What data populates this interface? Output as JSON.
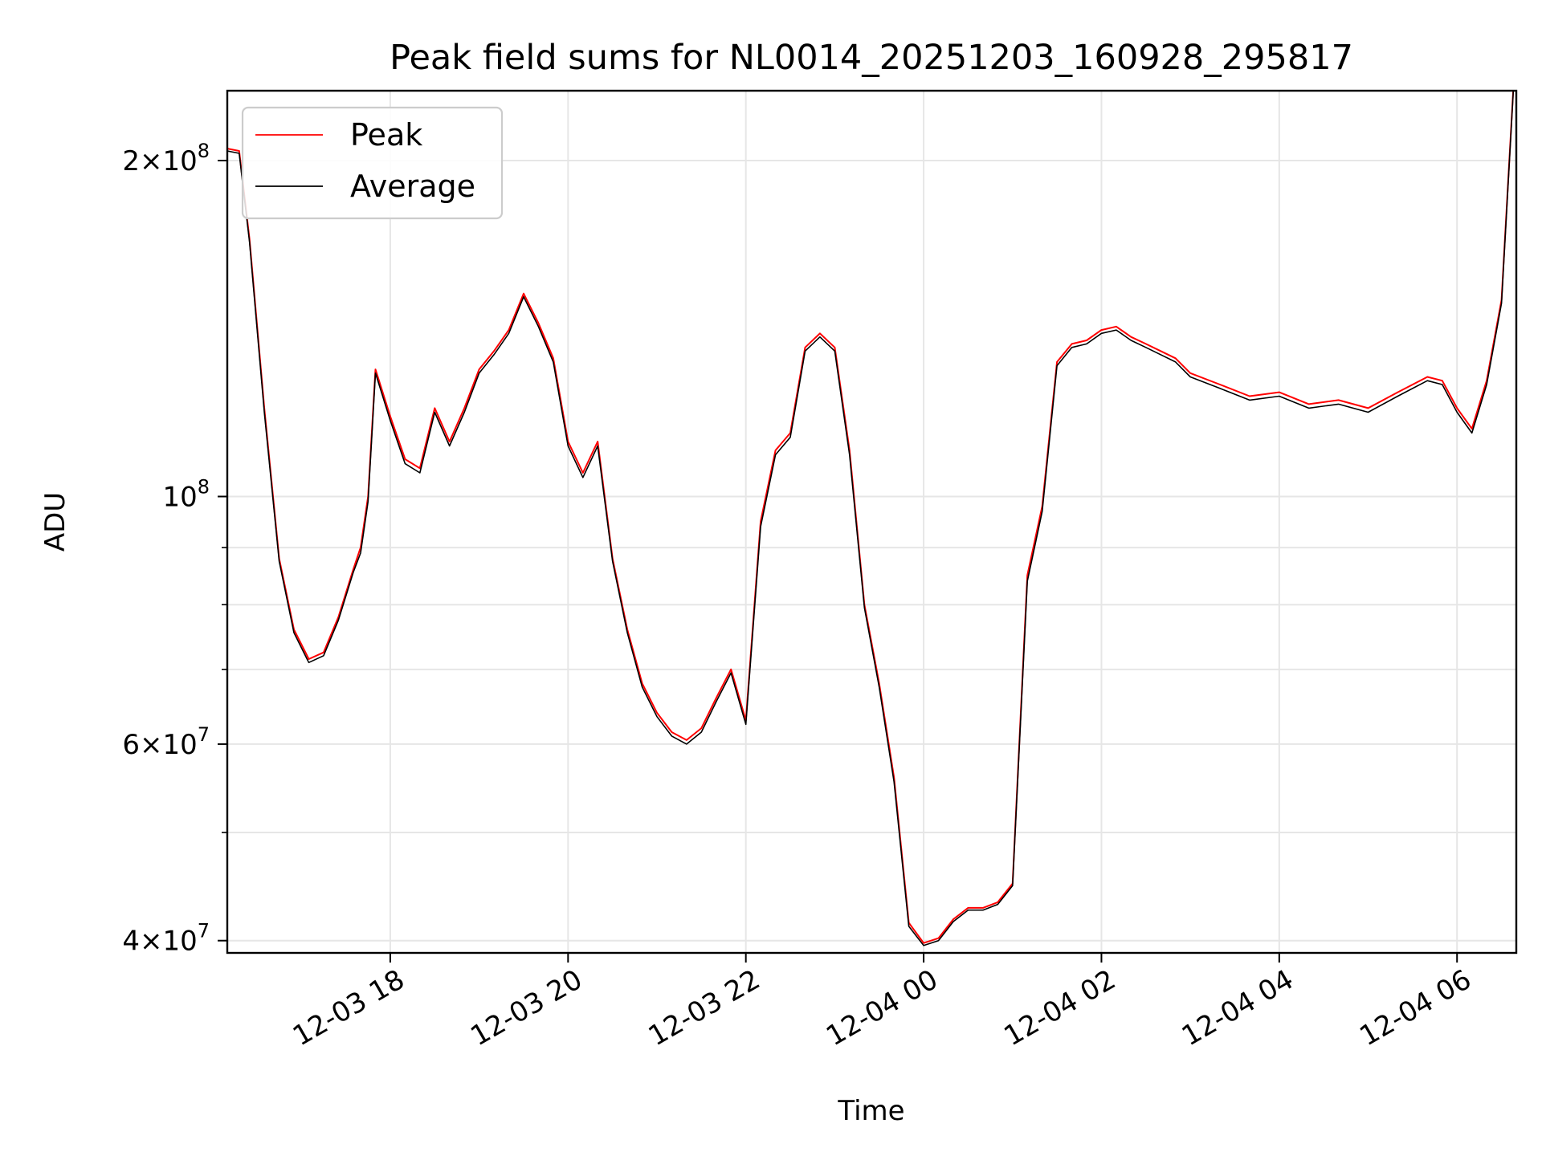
{
  "chart_data": {
    "type": "line",
    "title": "Peak field sums for NL0014_20251203_160928_295817",
    "xlabel": "Time",
    "ylabel": "ADU",
    "y_scale": "log",
    "ylim": [
      39000000,
      231000000
    ],
    "xlim": [
      "2025-12-03 16:10",
      "2025-12-04 06:40"
    ],
    "grid": true,
    "legend_position": "top-left",
    "x_ticks": [
      {
        "t": "2025-12-03 18:00",
        "label": "12-03 18"
      },
      {
        "t": "2025-12-03 20:00",
        "label": "12-03 20"
      },
      {
        "t": "2025-12-03 22:00",
        "label": "12-03 22"
      },
      {
        "t": "2025-12-04 00:00",
        "label": "12-04 00"
      },
      {
        "t": "2025-12-04 02:00",
        "label": "12-04 02"
      },
      {
        "t": "2025-12-04 04:00",
        "label": "12-04 04"
      },
      {
        "t": "2025-12-04 06:00",
        "label": "12-04 06"
      }
    ],
    "y_ticks_major": [
      {
        "v": 40000000,
        "mant": "4",
        "exp": "7"
      },
      {
        "v": 60000000,
        "mant": "6",
        "exp": "7"
      },
      {
        "v": 100000000,
        "mant": "",
        "exp": "8"
      },
      {
        "v": 200000000,
        "mant": "2",
        "exp": "8"
      }
    ],
    "y_ticks_minor": [
      50000000,
      70000000,
      80000000,
      90000000
    ],
    "series": [
      {
        "name": "Peak",
        "color": "#ff0000",
        "x": [
          "2025-12-03 16:10",
          "2025-12-03 16:18",
          "2025-12-03 16:25",
          "2025-12-03 16:35",
          "2025-12-03 16:45",
          "2025-12-03 16:55",
          "2025-12-03 17:05",
          "2025-12-03 17:15",
          "2025-12-03 17:25",
          "2025-12-03 17:35",
          "2025-12-03 17:40",
          "2025-12-03 17:45",
          "2025-12-03 17:50",
          "2025-12-03 18:00",
          "2025-12-03 18:10",
          "2025-12-03 18:20",
          "2025-12-03 18:30",
          "2025-12-03 18:40",
          "2025-12-03 18:50",
          "2025-12-03 19:00",
          "2025-12-03 19:10",
          "2025-12-03 19:20",
          "2025-12-03 19:30",
          "2025-12-03 19:40",
          "2025-12-03 19:50",
          "2025-12-03 20:00",
          "2025-12-03 20:10",
          "2025-12-03 20:20",
          "2025-12-03 20:30",
          "2025-12-03 20:40",
          "2025-12-03 20:50",
          "2025-12-03 21:00",
          "2025-12-03 21:10",
          "2025-12-03 21:20",
          "2025-12-03 21:30",
          "2025-12-03 21:40",
          "2025-12-03 21:50",
          "2025-12-03 22:00",
          "2025-12-03 22:10",
          "2025-12-03 22:20",
          "2025-12-03 22:30",
          "2025-12-03 22:40",
          "2025-12-03 22:50",
          "2025-12-03 23:00",
          "2025-12-03 23:10",
          "2025-12-03 23:20",
          "2025-12-03 23:30",
          "2025-12-03 23:40",
          "2025-12-03 23:50",
          "2025-12-04 00:00",
          "2025-12-04 00:10",
          "2025-12-04 00:20",
          "2025-12-04 00:30",
          "2025-12-04 00:40",
          "2025-12-04 00:50",
          "2025-12-04 01:00",
          "2025-12-04 01:10",
          "2025-12-04 01:20",
          "2025-12-04 01:30",
          "2025-12-04 01:40",
          "2025-12-04 01:50",
          "2025-12-04 02:00",
          "2025-12-04 02:10",
          "2025-12-04 02:20",
          "2025-12-04 02:30",
          "2025-12-04 02:40",
          "2025-12-04 02:50",
          "2025-12-04 03:00",
          "2025-12-04 03:20",
          "2025-12-04 03:40",
          "2025-12-04 04:00",
          "2025-12-04 04:20",
          "2025-12-04 04:40",
          "2025-12-04 05:00",
          "2025-12-04 05:20",
          "2025-12-04 05:40",
          "2025-12-04 05:50",
          "2025-12-04 06:00",
          "2025-12-04 06:10",
          "2025-12-04 06:20",
          "2025-12-04 06:30",
          "2025-12-04 06:38"
        ],
        "values": [
          205000000,
          204000000,
          170000000,
          120000000,
          88000000,
          76000000,
          71500000,
          72500000,
          78000000,
          86000000,
          90000000,
          100000000,
          130000000,
          118000000,
          108000000,
          106000000,
          120000000,
          112000000,
          120000000,
          130000000,
          135000000,
          141000000,
          152000000,
          143000000,
          133000000,
          112000000,
          105000000,
          112000000,
          88000000,
          76000000,
          68000000,
          64000000,
          61500000,
          60500000,
          62000000,
          66000000,
          70000000,
          63000000,
          95000000,
          110000000,
          114000000,
          136000000,
          140000000,
          136000000,
          110000000,
          80000000,
          68000000,
          56000000,
          41500000,
          39800000,
          40200000,
          41800000,
          42800000,
          42800000,
          43300000,
          45000000,
          85000000,
          98000000,
          132000000,
          137000000,
          138000000,
          141000000,
          142000000,
          139000000,
          137000000,
          135000000,
          133000000,
          129000000,
          126000000,
          123000000,
          124000000,
          121000000,
          122000000,
          120000000,
          124000000,
          128000000,
          127000000,
          120000000,
          115000000,
          127000000,
          150000000,
          232000000
        ]
      },
      {
        "name": "Average",
        "color": "#000000",
        "x": [
          "2025-12-03 16:10",
          "2025-12-03 16:18",
          "2025-12-03 16:25",
          "2025-12-03 16:35",
          "2025-12-03 16:45",
          "2025-12-03 16:55",
          "2025-12-03 17:05",
          "2025-12-03 17:15",
          "2025-12-03 17:25",
          "2025-12-03 17:35",
          "2025-12-03 17:40",
          "2025-12-03 17:45",
          "2025-12-03 17:50",
          "2025-12-03 18:00",
          "2025-12-03 18:10",
          "2025-12-03 18:20",
          "2025-12-03 18:30",
          "2025-12-03 18:40",
          "2025-12-03 18:50",
          "2025-12-03 19:00",
          "2025-12-03 19:10",
          "2025-12-03 19:20",
          "2025-12-03 19:30",
          "2025-12-03 19:40",
          "2025-12-03 19:50",
          "2025-12-03 20:00",
          "2025-12-03 20:10",
          "2025-12-03 20:20",
          "2025-12-03 20:30",
          "2025-12-03 20:40",
          "2025-12-03 20:50",
          "2025-12-03 21:00",
          "2025-12-03 21:10",
          "2025-12-03 21:20",
          "2025-12-03 21:30",
          "2025-12-03 21:40",
          "2025-12-03 21:50",
          "2025-12-03 22:00",
          "2025-12-03 22:10",
          "2025-12-03 22:20",
          "2025-12-03 22:30",
          "2025-12-03 22:40",
          "2025-12-03 22:50",
          "2025-12-03 23:00",
          "2025-12-03 23:10",
          "2025-12-03 23:20",
          "2025-12-03 23:30",
          "2025-12-03 23:40",
          "2025-12-03 23:50",
          "2025-12-04 00:00",
          "2025-12-04 00:10",
          "2025-12-04 00:20",
          "2025-12-04 00:30",
          "2025-12-04 00:40",
          "2025-12-04 00:50",
          "2025-12-04 01:00",
          "2025-12-04 01:10",
          "2025-12-04 01:20",
          "2025-12-04 01:30",
          "2025-12-04 01:40",
          "2025-12-04 01:50",
          "2025-12-04 02:00",
          "2025-12-04 02:10",
          "2025-12-04 02:20",
          "2025-12-04 02:30",
          "2025-12-04 02:40",
          "2025-12-04 02:50",
          "2025-12-04 03:00",
          "2025-12-04 03:20",
          "2025-12-04 03:40",
          "2025-12-04 04:00",
          "2025-12-04 04:20",
          "2025-12-04 04:40",
          "2025-12-04 05:00",
          "2025-12-04 05:20",
          "2025-12-04 05:40",
          "2025-12-04 05:50",
          "2025-12-04 06:00",
          "2025-12-04 06:10",
          "2025-12-04 06:20",
          "2025-12-04 06:30",
          "2025-12-04 06:38"
        ],
        "values": [
          204000000,
          203000000,
          169000000,
          119000000,
          87500000,
          75500000,
          71000000,
          72000000,
          77500000,
          85500000,
          89000000,
          99000000,
          129000000,
          117000000,
          107000000,
          105000000,
          119000000,
          111000000,
          119000000,
          129000000,
          134000000,
          140000000,
          151000000,
          142000000,
          132000000,
          111000000,
          104000000,
          111000000,
          87500000,
          75500000,
          67500000,
          63500000,
          61000000,
          60000000,
          61500000,
          65500000,
          69500000,
          62500000,
          94000000,
          109000000,
          113000000,
          135000000,
          139000000,
          135000000,
          109000000,
          79500000,
          67500000,
          55500000,
          41200000,
          39600000,
          40000000,
          41600000,
          42600000,
          42600000,
          43100000,
          44800000,
          84000000,
          97000000,
          131000000,
          136000000,
          137000000,
          140000000,
          141000000,
          138000000,
          136000000,
          134000000,
          132000000,
          128000000,
          125000000,
          122000000,
          123000000,
          120000000,
          121000000,
          119000000,
          123000000,
          127000000,
          126000000,
          119000000,
          114000000,
          126000000,
          149000000,
          231000000
        ]
      }
    ]
  }
}
